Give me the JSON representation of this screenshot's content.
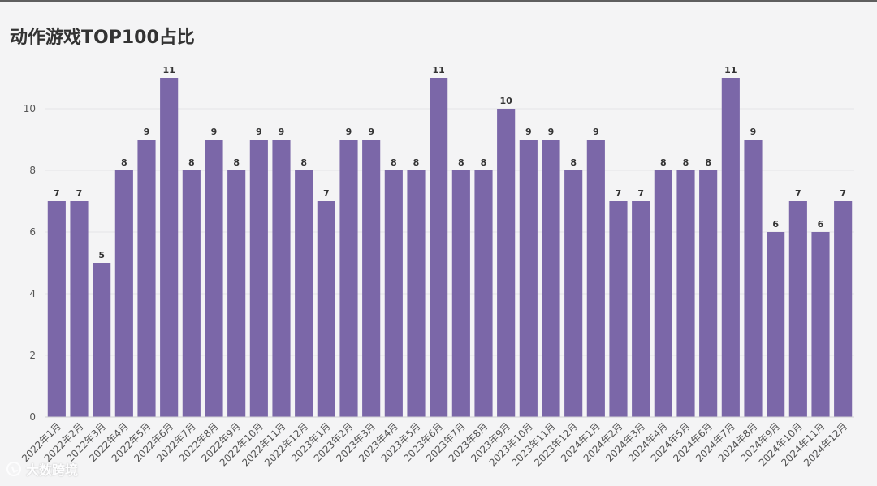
{
  "chart_data": {
    "type": "bar",
    "title": "动作游戏TOP100占比",
    "categories": [
      "2022年1月",
      "2022年2月",
      "2022年3月",
      "2022年4月",
      "2022年5月",
      "2022年6月",
      "2022年7月",
      "2022年8月",
      "2022年9月",
      "2022年10月",
      "2022年11月",
      "2022年12月",
      "2023年1月",
      "2023年2月",
      "2023年3月",
      "2023年4月",
      "2023年5月",
      "2023年6月",
      "2023年7月",
      "2023年8月",
      "2023年9月",
      "2023年10月",
      "2023年11月",
      "2023年12月",
      "2024年1月",
      "2024年2月",
      "2024年3月",
      "2024年4月",
      "2024年5月",
      "2024年6月",
      "2024年7月",
      "2024年8月",
      "2024年9月",
      "2024年10月",
      "2024年11月",
      "2024年12月"
    ],
    "values": [
      7,
      7,
      5,
      8,
      9,
      11,
      8,
      9,
      8,
      9,
      9,
      8,
      7,
      9,
      9,
      8,
      8,
      11,
      8,
      8,
      10,
      9,
      9,
      8,
      9,
      7,
      7,
      8,
      8,
      8,
      11,
      9,
      6,
      7,
      6,
      7
    ],
    "yticks": [
      0,
      2,
      4,
      6,
      8,
      10
    ],
    "ylim": [
      0,
      11.5
    ],
    "xlabel": "",
    "ylabel": "",
    "grid": true,
    "bar_color": "#7b67a8"
  },
  "watermark": {
    "text": "大数跨境"
  }
}
